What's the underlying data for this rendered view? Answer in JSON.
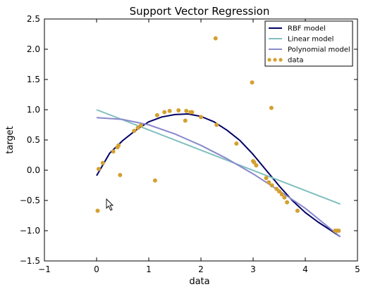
{
  "chart_data": {
    "type": "line",
    "title": "Support Vector Regression",
    "xlabel": "data",
    "ylabel": "target",
    "xlim": [
      -1,
      5
    ],
    "ylim": [
      -1.5,
      2.5
    ],
    "xticks": [
      "−1",
      "0",
      "1",
      "2",
      "3",
      "4",
      "5"
    ],
    "yticks": [
      "−1.5",
      "−1.0",
      "−0.5",
      "0.0",
      "0.5",
      "1.0",
      "1.5",
      "2.0",
      "2.5"
    ],
    "legend_position": "top-right",
    "grid": false,
    "series": [
      {
        "name": "RBF model",
        "kind": "line",
        "color": "#000066",
        "x": [
          0.0,
          0.25,
          0.5,
          0.75,
          1.0,
          1.25,
          1.5,
          1.75,
          2.0,
          2.25,
          2.5,
          2.75,
          3.0,
          3.25,
          3.5,
          3.75,
          4.0,
          4.25,
          4.5,
          4.67
        ],
        "values": [
          -0.09,
          0.28,
          0.49,
          0.66,
          0.8,
          0.88,
          0.92,
          0.93,
          0.89,
          0.8,
          0.66,
          0.49,
          0.26,
          0.0,
          -0.26,
          -0.5,
          -0.7,
          -0.86,
          -1.0,
          -1.1
        ]
      },
      {
        "name": "Linear model",
        "kind": "line",
        "color": "#7fbfbf",
        "x": [
          0.0,
          4.67
        ],
        "values": [
          1.0,
          -0.56
        ]
      },
      {
        "name": "Polynomial model",
        "kind": "line",
        "color": "#8888cc",
        "x": [
          0.0,
          0.5,
          1.0,
          1.5,
          2.0,
          2.5,
          3.0,
          3.5,
          4.0,
          4.67
        ],
        "values": [
          0.87,
          0.84,
          0.75,
          0.6,
          0.41,
          0.19,
          -0.06,
          -0.34,
          -0.63,
          -1.1
        ]
      },
      {
        "name": "data",
        "kind": "scatter",
        "color": "#d4a030",
        "x": [
          0.02,
          0.04,
          0.12,
          0.32,
          0.4,
          0.42,
          0.45,
          0.72,
          0.79,
          0.85,
          1.12,
          1.16,
          1.3,
          1.4,
          1.57,
          1.7,
          1.72,
          1.8,
          1.83,
          2.0,
          2.28,
          2.3,
          2.68,
          2.98,
          3.0,
          3.02,
          3.06,
          3.25,
          3.3,
          3.35,
          3.36,
          3.45,
          3.5,
          3.55,
          3.6,
          3.65,
          3.85,
          4.57,
          4.6,
          4.64
        ],
        "values": [
          -0.67,
          0.02,
          0.12,
          0.31,
          0.38,
          0.41,
          -0.08,
          0.65,
          0.7,
          0.74,
          -0.17,
          0.91,
          0.96,
          0.98,
          0.99,
          0.82,
          0.98,
          0.96,
          0.96,
          0.88,
          2.18,
          0.75,
          0.44,
          1.45,
          0.15,
          0.13,
          0.08,
          -0.13,
          -0.2,
          1.03,
          -0.25,
          -0.31,
          -0.35,
          -0.4,
          -0.45,
          -0.53,
          -0.67,
          -1.0,
          -1.0,
          -1.0
        ]
      }
    ]
  }
}
